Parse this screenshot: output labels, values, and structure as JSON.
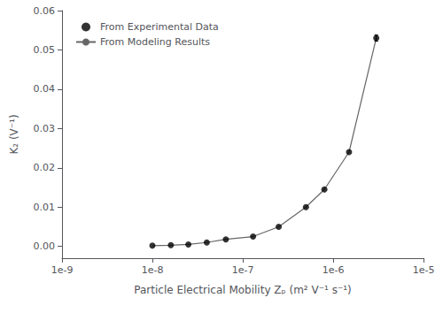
{
  "chart_data": {
    "type": "line",
    "xlabel": "Particle Electrical Mobility Zₚ (m² V⁻¹ s⁻¹)",
    "ylabel": "K₂ (V⁻¹)",
    "x": [
      1e-08,
      1.6e-08,
      2.5e-08,
      4e-08,
      6.5e-08,
      1.3e-07,
      2.5e-07,
      5e-07,
      8e-07,
      1.5e-06,
      3e-06
    ],
    "series": [
      {
        "name": "From Experimental Data",
        "type": "scatter",
        "color": "#000000",
        "marker": "circle",
        "values": [
          0.0002,
          0.0003,
          0.0005,
          0.001,
          0.0018,
          0.0025,
          0.005,
          0.01,
          0.0145,
          0.024,
          0.053
        ],
        "y_error": [
          null,
          null,
          null,
          null,
          null,
          null,
          null,
          null,
          null,
          null,
          0.0008
        ]
      },
      {
        "name": "From Modeling Results",
        "type": "line",
        "color": "#666666",
        "line_style": "solid",
        "values": [
          0.0002,
          0.0003,
          0.0005,
          0.001,
          0.0018,
          0.0025,
          0.005,
          0.01,
          0.0145,
          0.024,
          0.053
        ]
      }
    ],
    "log": "x",
    "xlim": [
      1e-09,
      1e-05
    ],
    "xticks": [
      {
        "value": 1e-09,
        "label": "1e-9"
      },
      {
        "value": 1e-08,
        "label": "1e-8"
      },
      {
        "value": 1e-07,
        "label": "1e-7"
      },
      {
        "value": 1e-06,
        "label": "1e-6"
      },
      {
        "value": 1e-05,
        "label": "1e-5"
      }
    ],
    "ylim": [
      -0.003,
      0.06
    ],
    "yticks": [
      {
        "value": 0.0,
        "label": "0.00"
      },
      0.01,
      0.02,
      0.03,
      0.04,
      0.05,
      0.06
    ],
    "grid": false,
    "legend": "upper left"
  }
}
